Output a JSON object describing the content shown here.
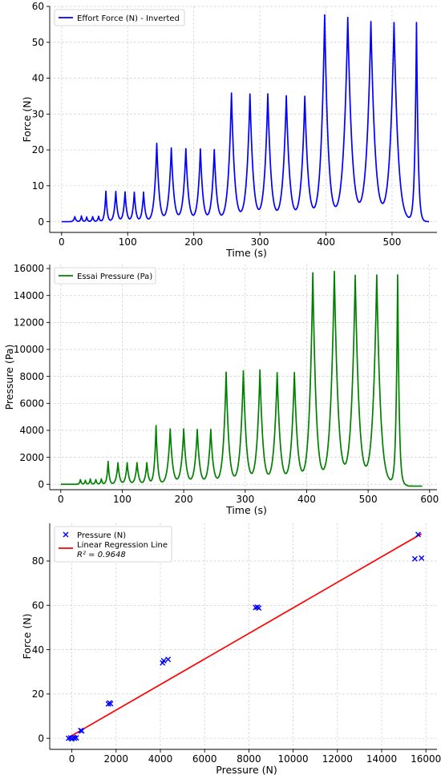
{
  "chart_data": [
    {
      "type": "line",
      "xlabel": "Time (s)",
      "ylabel": "Force (N)",
      "xlim": [
        -18,
        568
      ],
      "ylim": [
        -3,
        60
      ],
      "xticks": [
        0,
        100,
        200,
        300,
        400,
        500
      ],
      "yticks": [
        0,
        10,
        20,
        30,
        40,
        50,
        60
      ],
      "grid": true,
      "legend_position": "top-left",
      "baseline": 0,
      "series": [
        {
          "name": "Effort Force (N) - Inverted",
          "color": "#0000ff",
          "x_start": 0,
          "x_end": 556,
          "peaks": [
            {
              "x": 20,
              "y": 1.4
            },
            {
              "x": 30,
              "y": 1.6
            },
            {
              "x": 38,
              "y": 1.3
            },
            {
              "x": 47,
              "y": 1.4
            },
            {
              "x": 56,
              "y": 1.5
            },
            {
              "x": 67,
              "y": 8.5
            },
            {
              "x": 82,
              "y": 8.4
            },
            {
              "x": 96,
              "y": 8.3
            },
            {
              "x": 110,
              "y": 8.2
            },
            {
              "x": 124,
              "y": 8.2
            },
            {
              "x": 144,
              "y": 21.8
            },
            {
              "x": 166,
              "y": 20.5
            },
            {
              "x": 188,
              "y": 20.3
            },
            {
              "x": 210,
              "y": 20.2
            },
            {
              "x": 231,
              "y": 20.0
            },
            {
              "x": 257,
              "y": 35.8
            },
            {
              "x": 285,
              "y": 35.5
            },
            {
              "x": 312,
              "y": 35.5
            },
            {
              "x": 340,
              "y": 35.0
            },
            {
              "x": 368,
              "y": 34.8
            },
            {
              "x": 398,
              "y": 57.5
            },
            {
              "x": 433,
              "y": 56.8
            },
            {
              "x": 468,
              "y": 55.6
            },
            {
              "x": 503,
              "y": 55.4
            },
            {
              "x": 537,
              "y": 55.4
            }
          ]
        }
      ]
    },
    {
      "type": "line",
      "xlabel": "Time (s)",
      "ylabel": "Pressure (Pa)",
      "xlim": [
        -18,
        612
      ],
      "ylim": [
        -400,
        16300
      ],
      "xticks": [
        0,
        100,
        200,
        300,
        400,
        500,
        600
      ],
      "yticks": [
        0,
        2000,
        4000,
        6000,
        8000,
        10000,
        12000,
        14000,
        16000
      ],
      "grid": true,
      "legend_position": "top-left",
      "baseline": 0,
      "series": [
        {
          "name": "Essai Pressure (Pa)",
          "color": "#008000",
          "x_start": 0,
          "x_end": 588,
          "end_value": -150,
          "peaks": [
            {
              "x": 32,
              "y": 350
            },
            {
              "x": 40,
              "y": 300
            },
            {
              "x": 48,
              "y": 400
            },
            {
              "x": 57,
              "y": 350
            },
            {
              "x": 66,
              "y": 400
            },
            {
              "x": 77,
              "y": 1700
            },
            {
              "x": 93,
              "y": 1600
            },
            {
              "x": 108,
              "y": 1600
            },
            {
              "x": 124,
              "y": 1600
            },
            {
              "x": 140,
              "y": 1600
            },
            {
              "x": 155,
              "y": 4350
            },
            {
              "x": 178,
              "y": 4100
            },
            {
              "x": 200,
              "y": 4100
            },
            {
              "x": 222,
              "y": 4050
            },
            {
              "x": 244,
              "y": 4050
            },
            {
              "x": 269,
              "y": 8300
            },
            {
              "x": 297,
              "y": 8400
            },
            {
              "x": 324,
              "y": 8450
            },
            {
              "x": 352,
              "y": 8250
            },
            {
              "x": 380,
              "y": 8250
            },
            {
              "x": 410,
              "y": 15650
            },
            {
              "x": 445,
              "y": 15750
            },
            {
              "x": 479,
              "y": 15450
            },
            {
              "x": 514,
              "y": 15500
            },
            {
              "x": 548,
              "y": 15500
            }
          ]
        }
      ]
    },
    {
      "type": "scatter",
      "xlabel": "Pressure (N)",
      "ylabel": "Force (N)",
      "xlim": [
        -1000,
        16500
      ],
      "ylim": [
        -5,
        97
      ],
      "xticks": [
        0,
        2000,
        4000,
        6000,
        8000,
        10000,
        12000,
        14000,
        16000
      ],
      "yticks": [
        0,
        20,
        40,
        60,
        80
      ],
      "grid": true,
      "legend_position": "top-left",
      "series": [
        {
          "name": "Pressure (N)",
          "color": "#0000ff",
          "marker": "x",
          "points": [
            [
              -150,
              0
            ],
            [
              -50,
              0.2
            ],
            [
              0,
              -0.3
            ],
            [
              80,
              0.4
            ],
            [
              120,
              0
            ],
            [
              200,
              0.2
            ],
            [
              400,
              3.5
            ],
            [
              450,
              3.3
            ],
            [
              1650,
              15.5
            ],
            [
              1700,
              16
            ],
            [
              1750,
              15.6
            ],
            [
              4100,
              34
            ],
            [
              4150,
              35
            ],
            [
              4350,
              35.6
            ],
            [
              8300,
              59
            ],
            [
              8380,
              59.2
            ],
            [
              8450,
              58.8
            ],
            [
              15500,
              81
            ],
            [
              15650,
              92
            ],
            [
              15800,
              81.3
            ]
          ]
        },
        {
          "name": "Linear Regression Line",
          "label_line2": "R² = 0.9648",
          "color": "#ff0000",
          "type": "line",
          "slope": 0.005765,
          "intercept": 1.2,
          "x_range": [
            -150,
            15800
          ]
        }
      ]
    }
  ]
}
